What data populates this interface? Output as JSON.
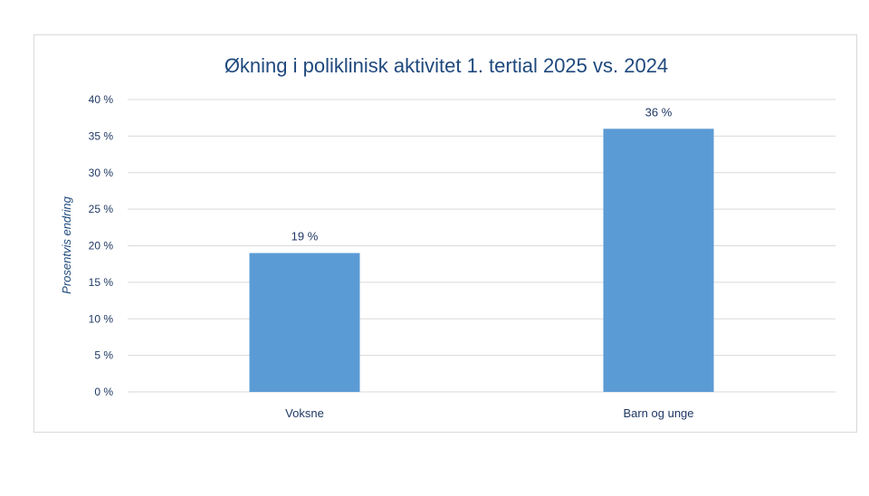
{
  "chart_data": {
    "type": "bar",
    "title": "Økning i poliklinisk aktivitet 1. tertial 2025 vs. 2024",
    "ylabel": "Prosentvis endring",
    "xlabel": "",
    "categories": [
      "Voksne",
      "Barn og unge"
    ],
    "values": [
      19,
      36
    ],
    "value_labels": [
      "19 %",
      "36 %"
    ],
    "ylim": [
      0,
      40
    ],
    "yticks": [
      0,
      5,
      10,
      15,
      20,
      25,
      30,
      35,
      40
    ],
    "ytick_labels": [
      "0 %",
      "5 %",
      "10 %",
      "15 %",
      "20 %",
      "25 %",
      "30 %",
      "35 %",
      "40 %"
    ],
    "grid": true,
    "legend": "none",
    "colors": {
      "bar": "#5b9bd5",
      "title": "#1f497d",
      "text": "#1f3864",
      "grid": "#d9d9d9"
    }
  }
}
